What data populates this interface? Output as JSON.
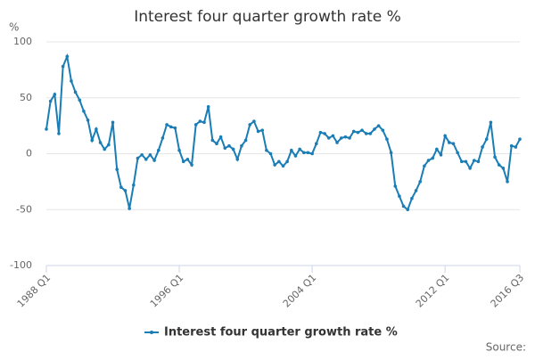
{
  "chart_data": {
    "type": "line",
    "title": "Interest four quarter growth rate %",
    "y_label": "%",
    "source": "Source:",
    "categories": [
      "1988 Q1",
      null,
      null,
      null,
      null,
      null,
      null,
      null,
      null,
      null,
      null,
      null,
      null,
      null,
      null,
      null,
      null,
      null,
      null,
      null,
      null,
      null,
      null,
      null,
      null,
      null,
      null,
      null,
      null,
      null,
      null,
      null,
      "1996 Q1",
      null,
      null,
      null,
      null,
      null,
      null,
      null,
      null,
      null,
      null,
      null,
      null,
      null,
      null,
      null,
      null,
      null,
      null,
      null,
      null,
      null,
      null,
      null,
      null,
      null,
      null,
      null,
      null,
      null,
      null,
      null,
      "2004 Q1",
      null,
      null,
      null,
      null,
      null,
      null,
      null,
      null,
      null,
      null,
      null,
      null,
      null,
      null,
      null,
      null,
      null,
      null,
      null,
      null,
      null,
      null,
      null,
      null,
      null,
      null,
      null,
      null,
      null,
      null,
      null,
      "2012 Q1",
      null,
      null,
      null,
      null,
      null,
      null,
      null,
      null,
      null,
      null,
      null,
      null,
      null,
      null,
      null,
      null,
      null,
      "2016 Q3"
    ],
    "series": [
      {
        "name": "Interest four quarter growth rate %",
        "color": "#1a7db5",
        "values": [
          22,
          47,
          53,
          18,
          78,
          87,
          65,
          55,
          48,
          38,
          30,
          12,
          22,
          10,
          4,
          8,
          28,
          -14,
          -30,
          -33,
          -49,
          -28,
          -4,
          -1,
          -5,
          -1,
          -6,
          3,
          14,
          26,
          24,
          23,
          3,
          -7,
          -5,
          -10,
          26,
          29,
          28,
          42,
          12,
          9,
          15,
          5,
          7,
          4,
          -5,
          7,
          12,
          26,
          29,
          20,
          21,
          3,
          0,
          -10,
          -7,
          -11,
          -7,
          3,
          -2,
          4,
          1,
          1,
          0,
          9,
          19,
          18,
          14,
          16,
          10,
          14,
          15,
          14,
          20,
          19,
          21,
          18,
          18,
          22,
          25,
          21,
          13,
          1,
          -29,
          -38,
          -47,
          -50,
          -40,
          -33,
          -25,
          -11,
          -6,
          -4,
          4,
          -1,
          16,
          10,
          9,
          1,
          -7,
          -7,
          -13,
          -6,
          -7,
          6,
          13,
          28,
          -3,
          -10,
          -13,
          -25,
          7,
          6,
          13
        ]
      }
    ],
    "ylim": [
      -100,
      100
    ],
    "yticks": [
      100,
      50,
      0,
      -50,
      -100
    ],
    "grid": true,
    "legend": "bottom"
  }
}
